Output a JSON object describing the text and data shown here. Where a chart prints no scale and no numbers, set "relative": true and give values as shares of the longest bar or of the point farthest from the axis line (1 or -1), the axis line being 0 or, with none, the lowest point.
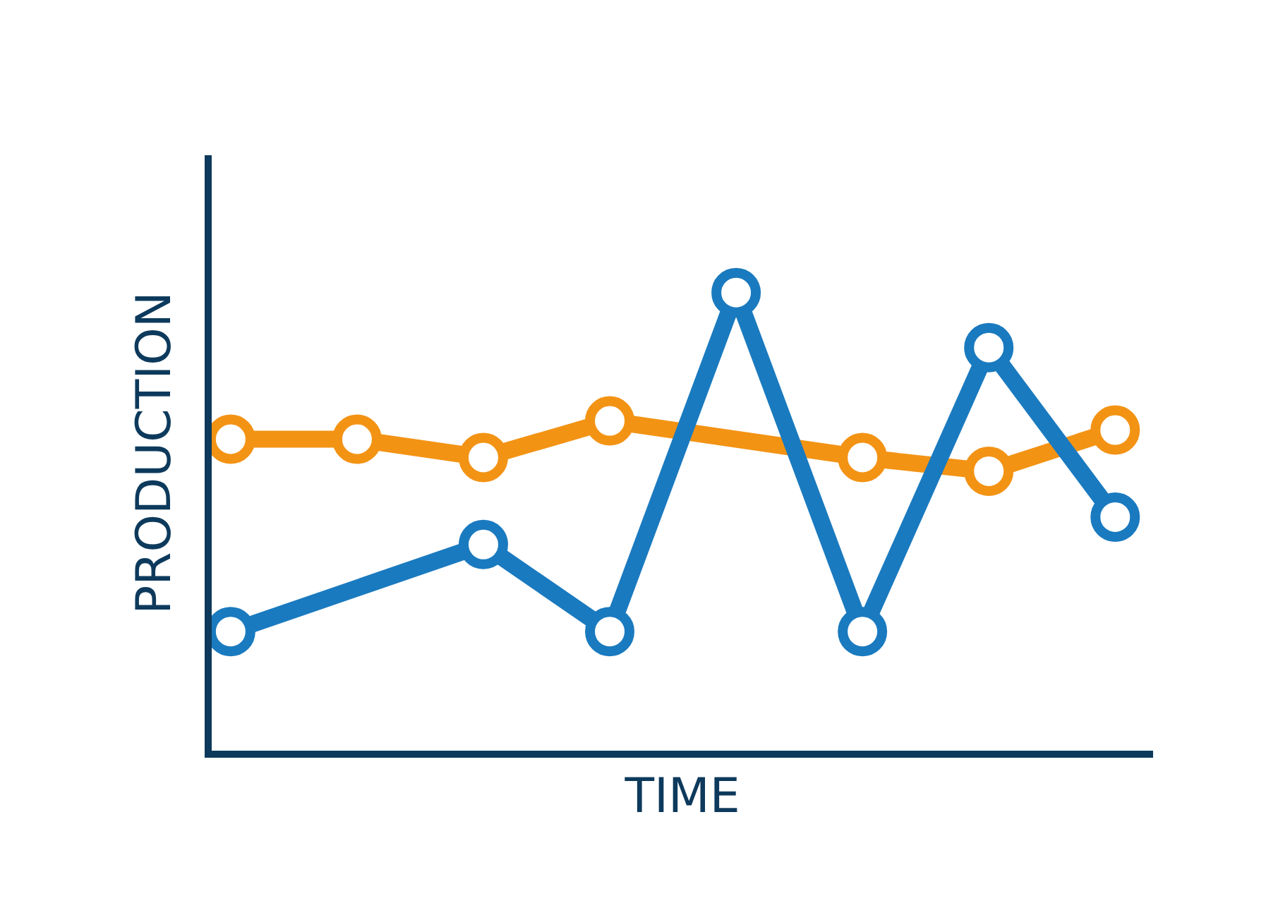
{
  "chart_data": {
    "type": "line",
    "relative": true,
    "xlabel": "TIME",
    "ylabel": "PRODUCTION",
    "categories": [
      null,
      null,
      null,
      null,
      null,
      null,
      null,
      null
    ],
    "series": [
      {
        "color": "#f39314",
        "values": [
          0.68,
          0.68,
          0.64,
          0.72,
          null,
          0.64,
          0.61,
          0.7
        ]
      },
      {
        "color": "#1a7abf",
        "values": [
          0.26,
          null,
          0.45,
          0.26,
          1,
          0.26,
          0.88,
          0.51
        ]
      }
    ],
    "marker": "circle",
    "line_style": "solid"
  }
}
